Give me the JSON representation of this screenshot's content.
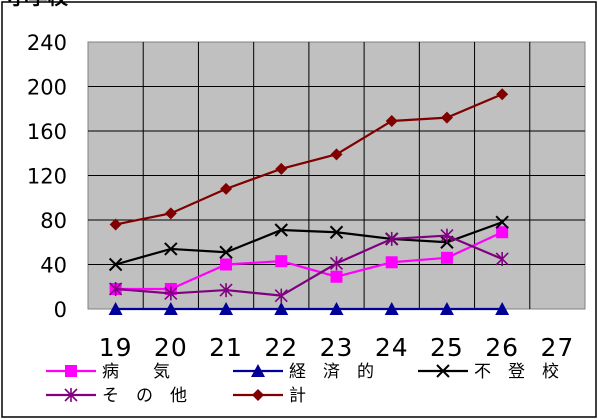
{
  "chart_data": {
    "type": "line",
    "title": "小学校",
    "xlabel": "",
    "ylabel": "",
    "categories": [
      "19",
      "20",
      "21",
      "22",
      "23",
      "24",
      "25",
      "26",
      "27"
    ],
    "ylim": [
      0,
      240
    ],
    "yticks": [
      "0",
      "40",
      "80",
      "120",
      "160",
      "200",
      "240"
    ],
    "grid": true,
    "plot_background": "#c0c0c0",
    "legend_position": "bottom",
    "series": [
      {
        "name": "病　　気",
        "color": "#ff00ff",
        "marker": "square",
        "values": [
          18,
          18,
          40,
          43,
          29,
          42,
          46,
          69,
          null
        ]
      },
      {
        "name": "経　済　的",
        "color": "#000099",
        "marker": "triangle",
        "values": [
          0,
          0,
          0,
          0,
          0,
          0,
          0,
          0,
          null
        ]
      },
      {
        "name": "不　登　校",
        "color": "#000000",
        "marker": "x",
        "values": [
          40,
          54,
          51,
          71,
          69,
          63,
          60,
          78,
          null
        ]
      },
      {
        "name": "そ　の　他",
        "color": "#800080",
        "marker": "star",
        "values": [
          18,
          14,
          17,
          12,
          41,
          63,
          66,
          45,
          null
        ]
      },
      {
        "name": "計",
        "color": "#800000",
        "marker": "diamond",
        "values": [
          76,
          86,
          108,
          126,
          139,
          169,
          172,
          193,
          null
        ]
      }
    ]
  }
}
